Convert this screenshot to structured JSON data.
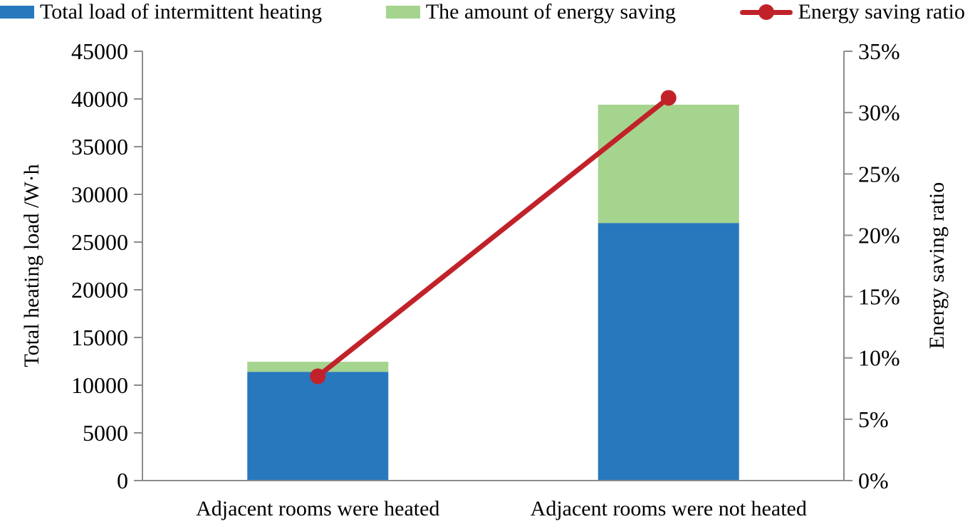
{
  "chart_data": {
    "type": "bar",
    "subtype": "stacked-bars-with-line-overlay",
    "title": "",
    "categories": [
      "Adjacent rooms were heated",
      "Adjacent rooms were not heated"
    ],
    "series": [
      {
        "name": "Total load of intermittent heating",
        "type": "bar",
        "stack": true,
        "axis": "left",
        "color": "#2878BE",
        "values": [
          11400,
          27000
        ]
      },
      {
        "name": "The amount of energy saving",
        "type": "bar",
        "stack": true,
        "axis": "left",
        "color": "#A5D48E",
        "values": [
          1050,
          12400
        ]
      },
      {
        "name": "Energy saving ratio",
        "type": "line",
        "stack": false,
        "axis": "right",
        "color": "#C1222A",
        "values": [
          8.5,
          31.2
        ]
      }
    ],
    "stacked_totals": [
      12450,
      39400
    ],
    "xlabel": "",
    "ylabel_left": "Total heating load /W·h",
    "ylabel_right": "Energy saving ratio",
    "y_left": {
      "min": 0,
      "max": 45000,
      "step": 5000,
      "suffix": ""
    },
    "y_right": {
      "min": 0,
      "max": 35,
      "step": 5,
      "suffix": "%"
    },
    "grid": false,
    "legend_position": "top",
    "axis_color": "#8C8C8C",
    "tick_labels_left": [
      "0",
      "5000",
      "10000",
      "15000",
      "20000",
      "25000",
      "30000",
      "35000",
      "40000",
      "45000"
    ],
    "tick_labels_right": [
      "0%",
      "5%",
      "10%",
      "15%",
      "20%",
      "25%",
      "30%",
      "35%"
    ]
  }
}
